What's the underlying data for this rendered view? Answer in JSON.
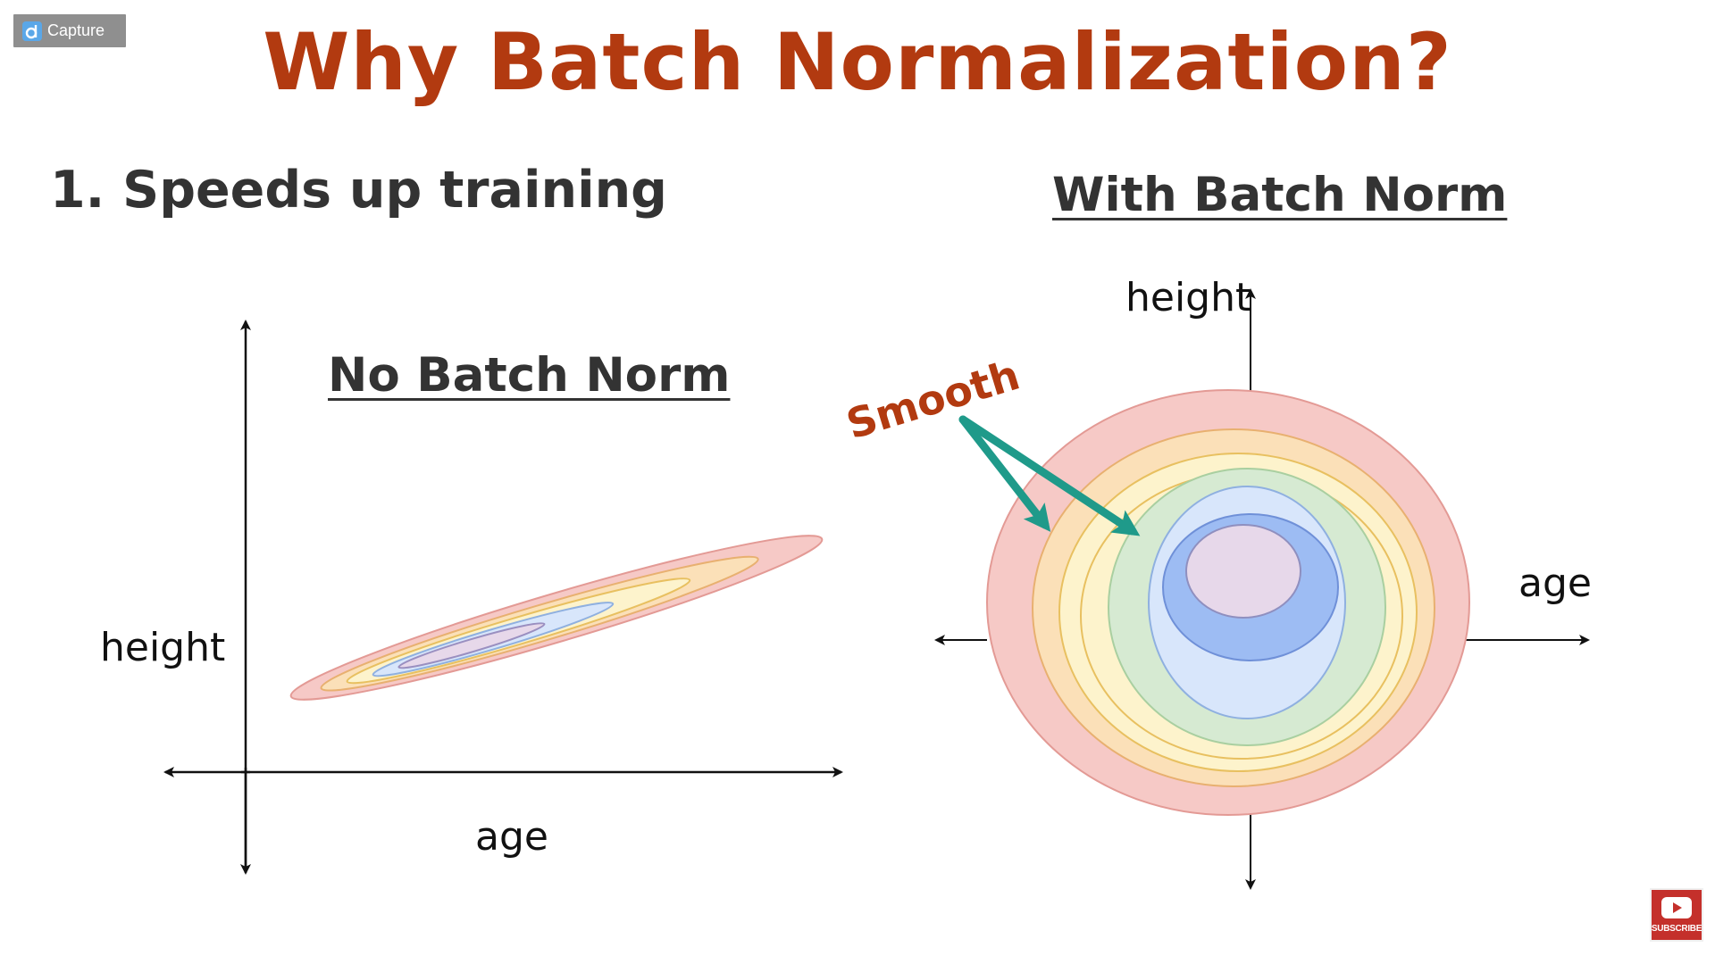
{
  "capture": {
    "label": "Capture",
    "icon": "capture-logo-icon"
  },
  "title": "Why Batch Normalization?",
  "point": "1. Speeds up training",
  "left_diagram": {
    "heading": "No Batch Norm",
    "x_label": "age",
    "y_label": "height"
  },
  "right_diagram": {
    "heading": "With Batch Norm",
    "x_label": "age",
    "y_label": "height",
    "annotation": "Smooth"
  },
  "subscribe": {
    "label": "SUBSCRIBE",
    "icon": "youtube-play-icon"
  },
  "colors": {
    "title": "#b23a10",
    "annotation": "#b23a10",
    "arrow": "#1f9a8a",
    "contour_red": "#f6c9c6",
    "contour_orange": "#fbe0b8",
    "contour_yellow": "#fdf3cc",
    "contour_green": "#d6ead2",
    "contour_lightblue": "#d8e6fb",
    "contour_blue": "#9dbcf3",
    "contour_lavender": "#e7d8ea"
  }
}
